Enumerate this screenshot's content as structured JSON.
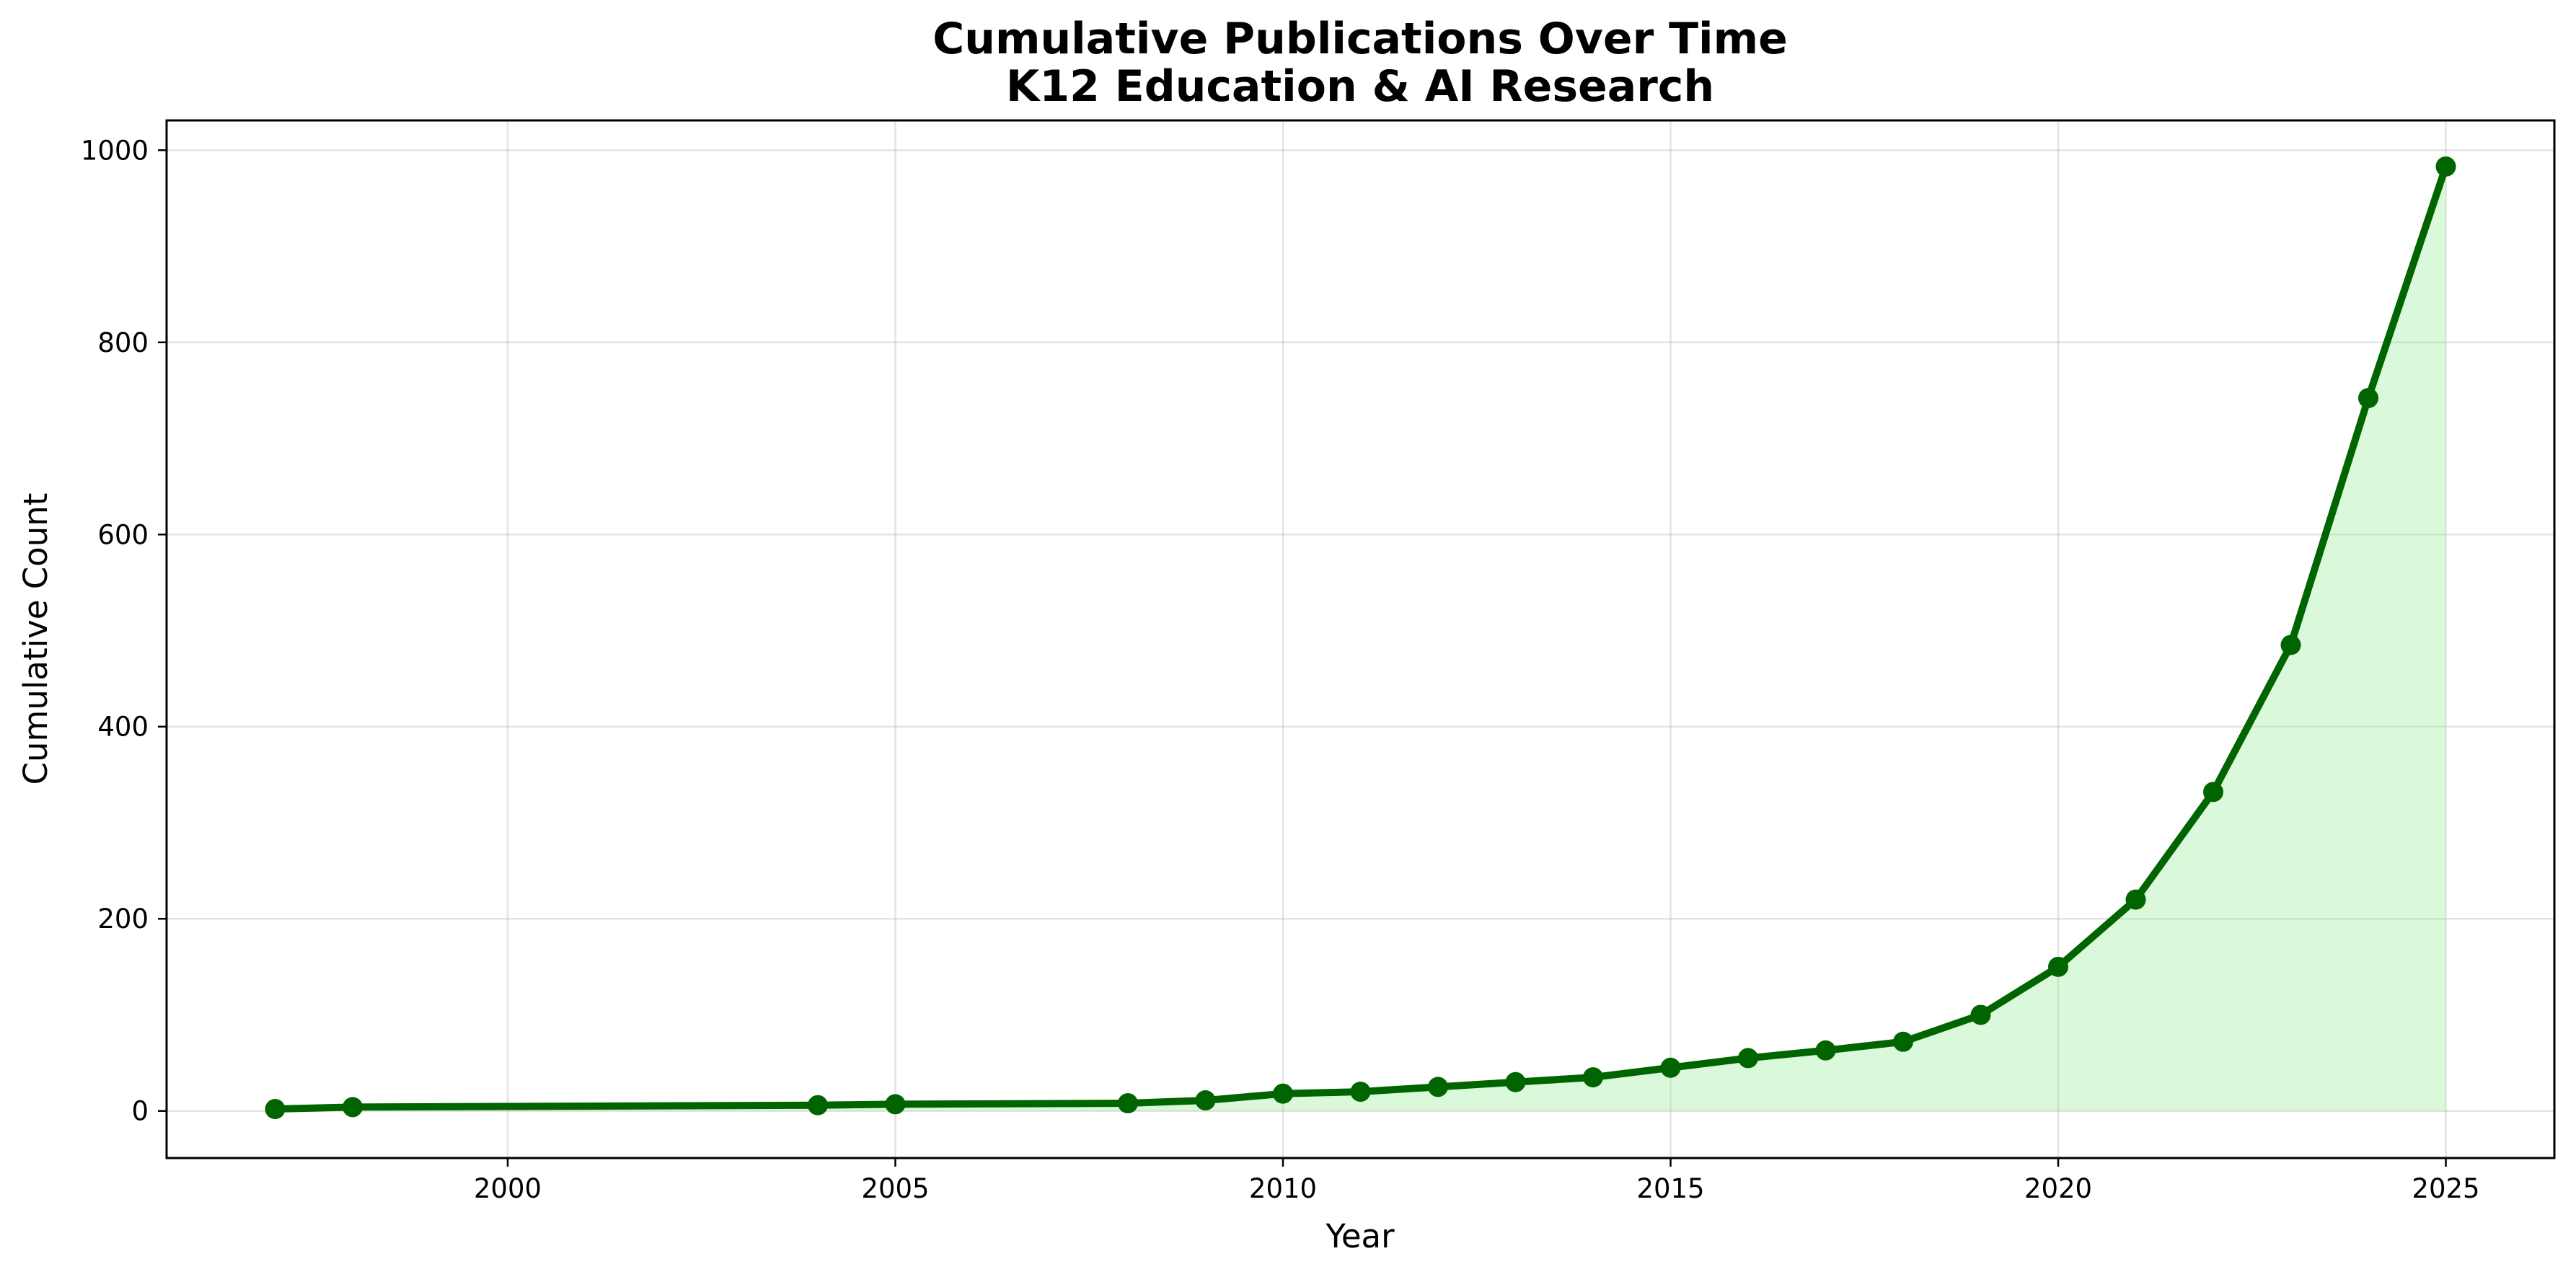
{
  "chart_data": {
    "type": "line",
    "title": "Cumulative Publications Over Time",
    "subtitle": "K12 Education & AI Research",
    "xlabel": "Year",
    "ylabel": "Cumulative Count",
    "xlim": [
      1995.6,
      2026.4
    ],
    "ylim": [
      -49,
      1031
    ],
    "xticks": [
      2000,
      2005,
      2010,
      2015,
      2020,
      2025
    ],
    "yticks": [
      0,
      200,
      400,
      600,
      800,
      1000
    ],
    "grid": true,
    "fill_under": true,
    "line_color": "#006400",
    "fill_color": "#90ee90",
    "series": [
      {
        "x": [
          1997,
          1998,
          2004,
          2005,
          2008,
          2009,
          2010,
          2011,
          2012,
          2013,
          2014,
          2015,
          2016,
          2017,
          2018,
          2019,
          2020,
          2021,
          2022,
          2023,
          2024,
          2025
        ],
        "values": [
          2,
          4,
          6,
          7,
          8,
          11,
          18,
          20,
          25,
          30,
          35,
          45,
          55,
          63,
          72,
          100,
          150,
          220,
          332,
          485,
          742,
          983
        ]
      }
    ]
  }
}
